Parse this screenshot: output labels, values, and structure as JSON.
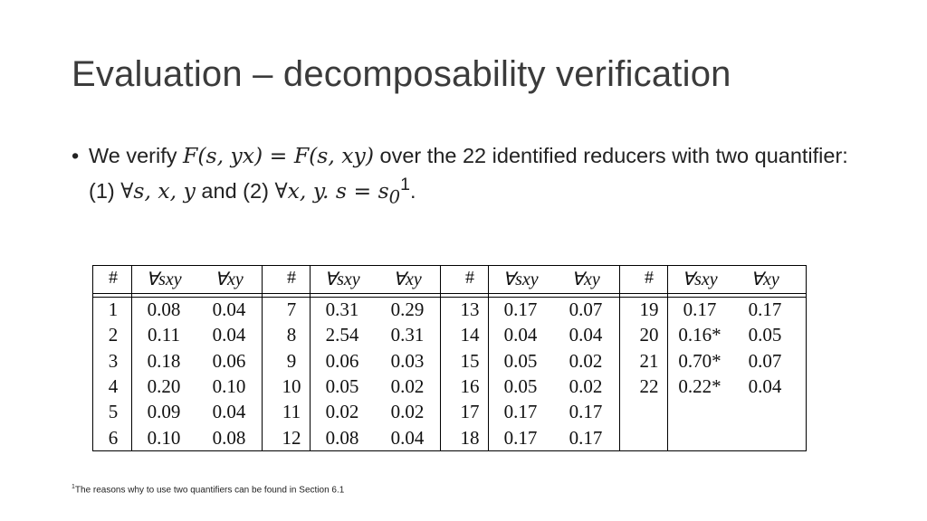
{
  "title": "Evaluation – decomposability verification",
  "bullet": {
    "dot": "•",
    "t1": "We verify ",
    "m1": "F(s, yx) = F(s, xy)",
    "t2": " over the 22 identified reducers with two quantifier: (1) ",
    "m2": "∀s, x, y",
    "t3": " and (2) ",
    "m3": "∀x, y. s = s",
    "m3sub": "0",
    "m3sup": "1",
    "t4": "."
  },
  "table": {
    "headers": [
      "#",
      "∀sxy",
      "∀xy",
      "#",
      "∀sxy",
      "∀xy",
      "#",
      "∀sxy",
      "∀xy",
      "#",
      "∀sxy",
      "∀xy"
    ],
    "groups": [
      {
        "ids": [
          "1",
          "2",
          "3",
          "4",
          "5",
          "6"
        ],
        "sxy": [
          "0.08",
          "0.11",
          "0.18",
          "0.20",
          "0.09",
          "0.10"
        ],
        "xy": [
          "0.04",
          "0.04",
          "0.06",
          "0.10",
          "0.04",
          "0.08"
        ]
      },
      {
        "ids": [
          "7",
          "8",
          "9",
          "10",
          "11",
          "12"
        ],
        "sxy": [
          "0.31",
          "2.54",
          "0.06",
          "0.05",
          "0.02",
          "0.08"
        ],
        "xy": [
          "0.29",
          "0.31",
          "0.03",
          "0.02",
          "0.02",
          "0.04"
        ]
      },
      {
        "ids": [
          "13",
          "14",
          "15",
          "16",
          "17",
          "18"
        ],
        "sxy": [
          "0.17",
          "0.04",
          "0.05",
          "0.05",
          "0.17",
          "0.17"
        ],
        "xy": [
          "0.07",
          "0.04",
          "0.02",
          "0.02",
          "0.17",
          "0.17"
        ]
      },
      {
        "ids": [
          "19",
          "20",
          "21",
          "22"
        ],
        "sxy": [
          "0.17",
          "0.16*",
          "0.70*",
          "0.22*"
        ],
        "xy": [
          "0.17",
          "0.05",
          "0.07",
          "0.04"
        ]
      }
    ]
  },
  "footnote": {
    "sup": "1",
    "text": "The reasons why to use two quantifiers can be found in Section 6.1"
  }
}
